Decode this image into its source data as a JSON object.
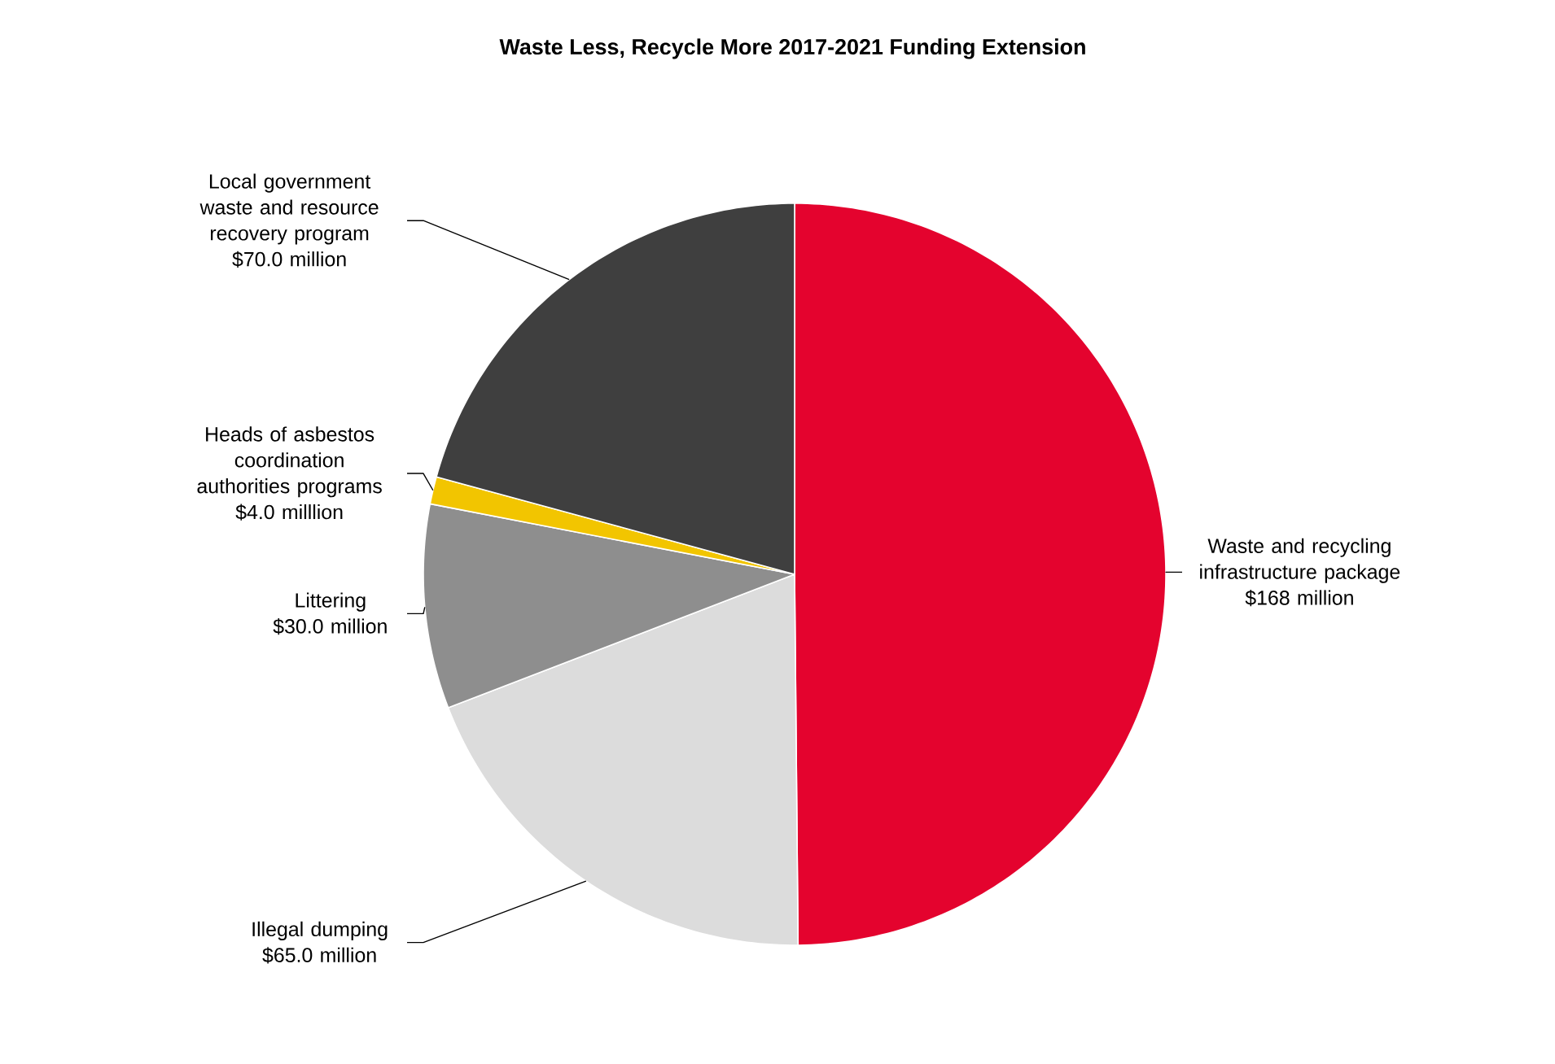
{
  "chart_data": {
    "type": "pie",
    "title": "Waste Less, Recycle More 2017-2021 Funding Extension",
    "categories": [
      "Waste and recycling infrastructure package",
      "Illegal dumping",
      "Littering",
      "Heads of asbestos coordination authorities programs",
      "Local government waste and resource recovery program"
    ],
    "values": [
      168,
      65,
      30,
      4,
      70
    ],
    "colors": [
      "#e4032e",
      "#dcdcdc",
      "#8e8e8e",
      "#f2c500",
      "#3f3f3f"
    ],
    "value_labels": [
      "$168 million",
      "$65.0 million",
      "$30.0 million",
      "$4.0 milllion",
      "$70.0 million"
    ]
  }
}
